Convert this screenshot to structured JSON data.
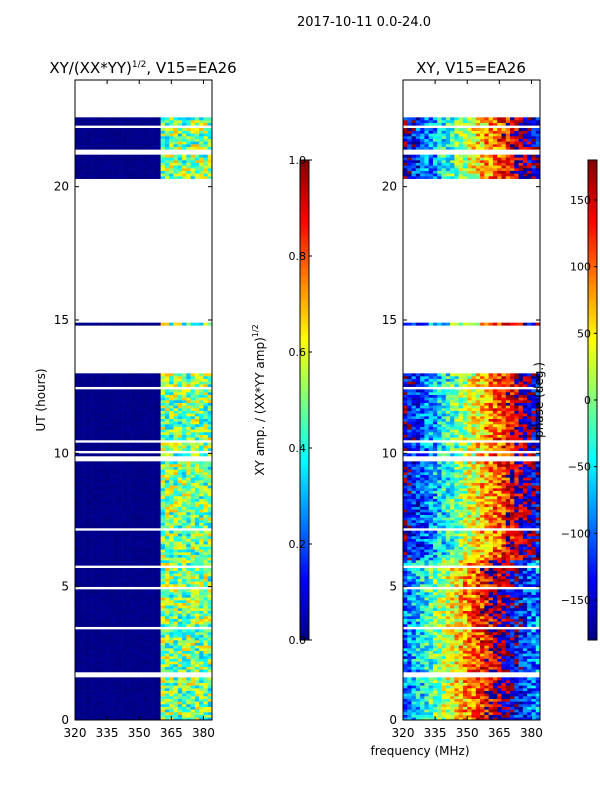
{
  "suptitle": "2017-10-11 0.0-24.0",
  "colormap_stops": [
    "#00007f",
    "#0000ff",
    "#0080ff",
    "#00ffff",
    "#80ff80",
    "#ffff00",
    "#ff8000",
    "#ff0000",
    "#7f0000"
  ],
  "chart_data": [
    {
      "id": "amp",
      "type": "heatmap",
      "title_text": "XY/(XX*YY)",
      "title_sup": "1/2",
      "title_suffix": ", V15=EA26",
      "xlabel": "",
      "ylabel": "UT (hours)",
      "xlim": [
        320,
        384
      ],
      "ylim": [
        0,
        24
      ],
      "xticks": [
        320,
        335,
        350,
        365,
        380
      ],
      "xtick_labels": [
        "320",
        "335",
        "350",
        "365",
        "380"
      ],
      "yticks": [
        0,
        5,
        10,
        15,
        20
      ],
      "ytick_labels": [
        "0",
        "5",
        "10",
        "15",
        "20"
      ],
      "colorbar": {
        "label_text": "XY amp. / (XX*YY amp)",
        "label_sup": "1/2",
        "range": [
          0.0,
          1.0
        ],
        "ticks": [
          0.0,
          0.2,
          0.4,
          0.6,
          0.8,
          1.0
        ],
        "tick_labels": [
          "0.0",
          "0.2",
          "0.4",
          "0.6",
          "0.8",
          "1.0"
        ]
      }
    },
    {
      "id": "phase",
      "type": "heatmap",
      "title_text": "XY, V15=EA26",
      "xlabel": "frequency (MHz)",
      "ylabel": "",
      "xlim": [
        320,
        384
      ],
      "ylim": [
        0,
        24
      ],
      "xticks": [
        320,
        335,
        350,
        365,
        380
      ],
      "xtick_labels": [
        "320",
        "335",
        "350",
        "365",
        "380"
      ],
      "yticks": [
        0,
        5,
        10,
        15,
        20
      ],
      "ytick_labels": [
        "0",
        "5",
        "10",
        "15",
        "20"
      ],
      "colorbar": {
        "label_text": "phase (deg.)",
        "range": [
          -180,
          180
        ],
        "ticks": [
          -150,
          -100,
          -50,
          0,
          50,
          100,
          150
        ],
        "tick_labels": [
          "−150",
          "−100",
          "−50",
          "0",
          "50",
          "100",
          "150"
        ]
      }
    }
  ],
  "data_coverage_ut": [
    [
      0.0,
      13.0
    ],
    [
      14.8,
      14.9
    ],
    [
      20.3,
      22.6
    ]
  ],
  "bright_channel_range_mhz": [
    360,
    384
  ]
}
